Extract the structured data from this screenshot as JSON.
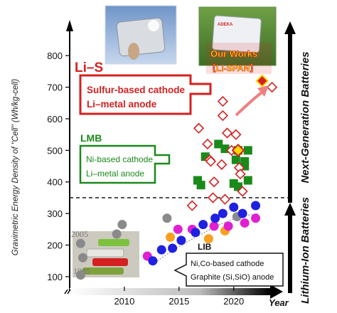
{
  "chart_data": {
    "type": "scatter",
    "ylabel": "Gravimetric Energy Density of \"Cell\" (Wh/kg-cell)",
    "xlabel": "Year",
    "xlim": [
      2005,
      2024.5
    ],
    "ylim": [
      75,
      850
    ],
    "x_ticks": [
      2010,
      2015,
      2020
    ],
    "y_ticks": [
      100,
      200,
      300,
      400,
      500,
      600,
      700,
      800
    ],
    "threshold_y": 350,
    "side_labels": {
      "top": "Next-Generation Batteries",
      "bottom": "Lithium-Ion Batteries"
    },
    "photo_years": [
      "2005",
      "1995"
    ],
    "groups": {
      "lis": {
        "title": "Li–S",
        "lines": [
          "Sulfur-based cathode",
          "Li–metal anode"
        ],
        "color": "#d42020",
        "points": [
          {
            "x": 2016.2,
            "y": 325
          },
          {
            "x": 2016.8,
            "y": 570
          },
          {
            "x": 2017.6,
            "y": 520
          },
          {
            "x": 2017.8,
            "y": 470
          },
          {
            "x": 2017.9,
            "y": 465
          },
          {
            "x": 2018.1,
            "y": 350
          },
          {
            "x": 2018.2,
            "y": 400
          },
          {
            "x": 2018.9,
            "y": 455
          },
          {
            "x": 2019.0,
            "y": 610
          },
          {
            "x": 2019.0,
            "y": 655
          },
          {
            "x": 2019.2,
            "y": 345
          },
          {
            "x": 2019.4,
            "y": 555
          },
          {
            "x": 2019.8,
            "y": 500
          },
          {
            "x": 2020.2,
            "y": 550
          },
          {
            "x": 2020.5,
            "y": 445
          },
          {
            "x": 2020.6,
            "y": 425
          },
          {
            "x": 2020.8,
            "y": 370
          },
          {
            "x": 2023.5,
            "y": 700
          }
        ]
      },
      "lmb": {
        "title": "LMB",
        "lines": [
          "Ni-based cathode",
          "Li–metal anode"
        ],
        "color": "#1a8a1a",
        "points": [
          {
            "x": 2016.7,
            "y": 405
          },
          {
            "x": 2017.0,
            "y": 390
          },
          {
            "x": 2017.4,
            "y": 480
          },
          {
            "x": 2018.6,
            "y": 520
          },
          {
            "x": 2019.2,
            "y": 505
          },
          {
            "x": 2020.0,
            "y": 395
          },
          {
            "x": 2020.2,
            "y": 470
          },
          {
            "x": 2020.4,
            "y": 500
          },
          {
            "x": 2020.4,
            "y": 385
          },
          {
            "x": 2021.3,
            "y": 500
          },
          {
            "x": 2021.3,
            "y": 405
          },
          {
            "x": 2021.0,
            "y": 465
          },
          {
            "x": 2021.0,
            "y": 450
          }
        ]
      },
      "lib": {
        "title": "LIB",
        "lines": [
          "Ni,Co-based cathode",
          "Graphite (Si,SiO) anode"
        ],
        "gray": [
          {
            "x": 2006.0,
            "y": 205
          },
          {
            "x": 2006.0,
            "y": 105
          },
          {
            "x": 2006.2,
            "y": 160
          },
          {
            "x": 2009.3,
            "y": 235
          },
          {
            "x": 2009.8,
            "y": 265
          },
          {
            "x": 2013.9,
            "y": 285
          },
          {
            "x": 2020.3,
            "y": 290
          }
        ],
        "blue": [
          {
            "x": 2012.6,
            "y": 150
          },
          {
            "x": 2013.4,
            "y": 185
          },
          {
            "x": 2014.4,
            "y": 190
          },
          {
            "x": 2015.2,
            "y": 215
          },
          {
            "x": 2016.5,
            "y": 240
          },
          {
            "x": 2017.2,
            "y": 265
          },
          {
            "x": 2018.3,
            "y": 285
          },
          {
            "x": 2019.0,
            "y": 300
          },
          {
            "x": 2020.0,
            "y": 320
          },
          {
            "x": 2020.8,
            "y": 300
          },
          {
            "x": 2022.0,
            "y": 325
          }
        ],
        "magenta": [
          {
            "x": 2012.1,
            "y": 165
          },
          {
            "x": 2014.9,
            "y": 250
          },
          {
            "x": 2016.2,
            "y": 250
          },
          {
            "x": 2018.2,
            "y": 260
          },
          {
            "x": 2019.5,
            "y": 260
          },
          {
            "x": 2021.0,
            "y": 270
          },
          {
            "x": 2022.0,
            "y": 285
          }
        ],
        "orange": [
          {
            "x": 2014.2,
            "y": 225
          },
          {
            "x": 2017.7,
            "y": 220
          },
          {
            "x": 2019.2,
            "y": 245
          }
        ]
      },
      "ours": {
        "title": "Our Works",
        "subtitle": "【Li-SPAN】",
        "points": [
          {
            "x": 2020.4,
            "y": 500
          },
          {
            "x": 2022.6,
            "y": 720
          }
        ]
      }
    }
  },
  "colors": {
    "lis": "#d42020",
    "lmb": "#1a8a1a",
    "blue": "#1f20e0",
    "magenta": "#e020d0",
    "orange": "#f7a020",
    "gray": "#8a8a8a",
    "ours_fill": "#ffd800",
    "ours_border": "#d42020"
  }
}
